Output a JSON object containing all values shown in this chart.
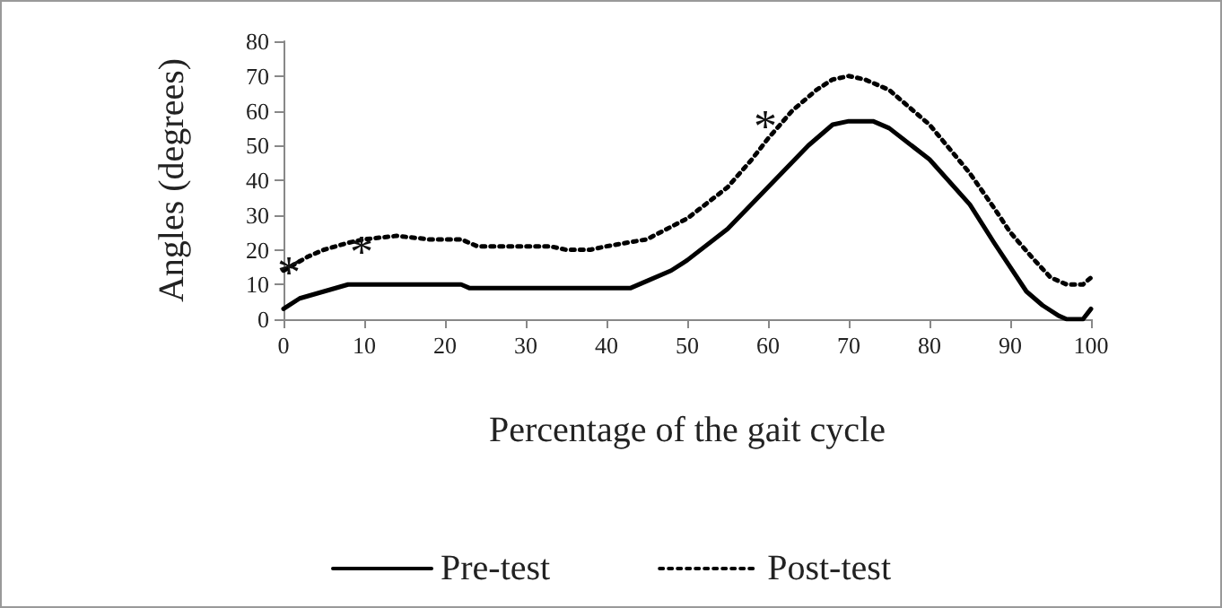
{
  "chart_data": {
    "type": "line",
    "xlabel": "Percentage of the gait cycle",
    "ylabel": "Angles (degrees)",
    "xlim": [
      0,
      100
    ],
    "xticks": [
      0,
      10,
      20,
      30,
      40,
      50,
      60,
      70,
      80,
      90,
      100
    ],
    "ylim": [
      0,
      80
    ],
    "yticks": [
      0,
      10,
      20,
      30,
      40,
      50,
      60,
      70,
      80
    ],
    "grid": false,
    "legend": "bottom",
    "marker": "none",
    "annotations": [
      {
        "text": "*",
        "x": 2,
        "y": 16
      },
      {
        "text": "*",
        "x": 11,
        "y": 22
      },
      {
        "text": "*",
        "x": 61,
        "y": 58
      }
    ],
    "series": [
      {
        "name": "Pre-test",
        "color": "#000000",
        "line_style": "solid",
        "x": [
          0,
          2,
          5,
          8,
          10,
          15,
          20,
          22,
          23,
          30,
          40,
          43,
          45,
          48,
          50,
          55,
          60,
          65,
          68,
          70,
          73,
          75,
          80,
          85,
          88,
          90,
          92,
          94,
          96,
          97,
          99,
          100
        ],
        "values": [
          3,
          6,
          8,
          10,
          10,
          10,
          10,
          10,
          9,
          9,
          9,
          9,
          11,
          14,
          17,
          26,
          38,
          50,
          56,
          57,
          57,
          55,
          46,
          33,
          22,
          15,
          8,
          4,
          1,
          0,
          0,
          3
        ]
      },
      {
        "name": "Post-test",
        "color": "#000000",
        "line_style": "dotted",
        "x": [
          0,
          3,
          5,
          8,
          10,
          14,
          18,
          22,
          24,
          30,
          33,
          35,
          38,
          40,
          45,
          50,
          55,
          58,
          60,
          63,
          66,
          68,
          70,
          72,
          75,
          80,
          85,
          88,
          90,
          93,
          95,
          97,
          99,
          100
        ],
        "values": [
          14,
          18,
          20,
          22,
          23,
          24,
          23,
          23,
          21,
          21,
          21,
          20,
          20,
          21,
          23,
          29,
          38,
          46,
          52,
          60,
          66,
          69,
          70,
          69,
          66,
          56,
          42,
          32,
          25,
          17,
          12,
          10,
          10,
          12
        ]
      }
    ]
  }
}
